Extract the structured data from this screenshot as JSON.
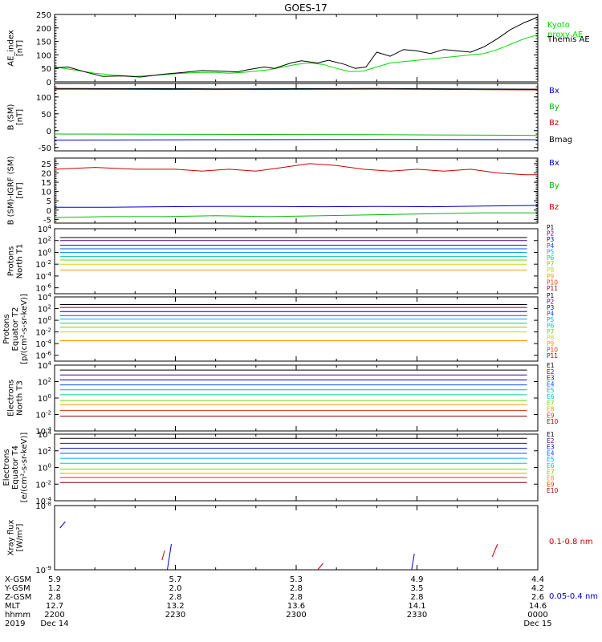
{
  "title": "GOES-17",
  "chart_data": [
    {
      "type": "line",
      "ylabel": [
        "AE_index",
        "[nT]"
      ],
      "ylim": [
        0,
        250
      ],
      "yticks": [
        "0",
        "50",
        "100",
        "150",
        "200",
        "250"
      ],
      "series": [
        {
          "name": "Kyoto proxy AE",
          "color": "#00dd00",
          "x": [
            0,
            5,
            15,
            22,
            30,
            38,
            45,
            50,
            55,
            60,
            65,
            70,
            75,
            80,
            85,
            90,
            95,
            100,
            105,
            110,
            115,
            120,
            125,
            130,
            135,
            140,
            145,
            150,
            155,
            160,
            165,
            170,
            175,
            180
          ],
          "y": [
            55,
            48,
            32,
            25,
            20,
            25,
            30,
            33,
            35,
            35,
            32,
            35,
            40,
            45,
            55,
            65,
            70,
            65,
            50,
            38,
            40,
            55,
            70,
            75,
            80,
            85,
            90,
            95,
            100,
            105,
            120,
            140,
            160,
            175
          ]
        },
        {
          "name": "Themis AE",
          "color": "#000000",
          "x": [
            0,
            5,
            12,
            18,
            25,
            32,
            40,
            48,
            55,
            62,
            68,
            72,
            78,
            82,
            88,
            92,
            98,
            102,
            108,
            112,
            116,
            120,
            125,
            130,
            135,
            140,
            145,
            150,
            155,
            160,
            165,
            170,
            175,
            180
          ],
          "y": [
            52,
            55,
            35,
            20,
            22,
            18,
            28,
            35,
            42,
            40,
            37,
            45,
            55,
            50,
            70,
            78,
            70,
            80,
            65,
            50,
            55,
            110,
            95,
            120,
            115,
            105,
            120,
            115,
            110,
            130,
            160,
            195,
            220,
            240
          ]
        }
      ]
    },
    {
      "type": "line",
      "ylabel": [
        "B (SM)",
        "[nT]"
      ],
      "ylim": [
        -60,
        140
      ],
      "yticks": [
        "-50",
        "0",
        "50",
        "100"
      ],
      "series": [
        {
          "name": "Bx",
          "color": "#0000cc",
          "x": [
            0,
            60,
            120,
            180
          ],
          "y": [
            -28,
            -27,
            -26,
            -27
          ]
        },
        {
          "name": "By",
          "color": "#00bb00",
          "x": [
            0,
            60,
            120,
            180
          ],
          "y": [
            -10,
            -11,
            -12,
            -14
          ]
        },
        {
          "name": "Bz",
          "color": "#cc0000",
          "x": [
            0,
            60,
            120,
            180
          ],
          "y": [
            123,
            122,
            123,
            121
          ]
        },
        {
          "name": "Bmag",
          "color": "#000000",
          "x": [
            0,
            60,
            120,
            180
          ],
          "y": [
            125,
            124,
            125,
            123
          ]
        }
      ]
    },
    {
      "type": "line",
      "ylabel": [
        "B (SM)-IGRF (SM)",
        "[nT]"
      ],
      "ylim": [
        -7,
        28
      ],
      "yticks": [
        "-5",
        "0",
        "5",
        "10",
        "15",
        "20",
        "25"
      ],
      "series": [
        {
          "name": "Bx",
          "color": "#0000cc",
          "x": [
            0,
            20,
            40,
            60,
            80,
            100,
            120,
            140,
            160,
            180
          ],
          "y": [
            1.5,
            1.5,
            1.8,
            2.0,
            2.0,
            1.8,
            2.0,
            1.8,
            2.2,
            2.5
          ]
        },
        {
          "name": "By",
          "color": "#00bb00",
          "x": [
            0,
            20,
            40,
            60,
            80,
            100,
            120,
            140,
            160,
            180
          ],
          "y": [
            -4,
            -3.5,
            -3.5,
            -3,
            -3.5,
            -3,
            -2.5,
            -2,
            -1.5,
            -1.5
          ]
        },
        {
          "name": "Bz",
          "color": "#cc0000",
          "x": [
            0,
            15,
            30,
            45,
            55,
            65,
            75,
            85,
            95,
            105,
            115,
            125,
            135,
            145,
            155,
            165,
            175,
            180
          ],
          "y": [
            22,
            23,
            22,
            22,
            21,
            22,
            21,
            23,
            25,
            24,
            22,
            21,
            22,
            21,
            22,
            20,
            19,
            19
          ]
        }
      ]
    },
    {
      "type": "line",
      "ylabel": [
        "Protons",
        "North T1"
      ],
      "log": true,
      "ylim_exp": [
        -7,
        4
      ],
      "yticks": [
        "10-6",
        "10-4",
        "10-2",
        "100",
        "102",
        "104"
      ],
      "series": [
        {
          "name": "P1",
          "color": "#000000",
          "level": 2.5
        },
        {
          "name": "P2",
          "color": "#4b0082",
          "level": 2.0
        },
        {
          "name": "P3",
          "color": "#0000cc",
          "level": 1.2
        },
        {
          "name": "P4",
          "color": "#0055ff",
          "level": 0.6
        },
        {
          "name": "P5",
          "color": "#00aaee",
          "level": 0.0
        },
        {
          "name": "P6",
          "color": "#00ccaa",
          "level": -0.7
        },
        {
          "name": "P7",
          "color": "#66dd00",
          "level": -1.3
        },
        {
          "name": "P8",
          "color": "#bbdd00",
          "level": -2.0
        },
        {
          "name": "P9",
          "color": "#ff9900",
          "level": -3.0
        },
        {
          "name": "P10",
          "color": "#dd3300",
          "level": -8
        },
        {
          "name": "P11",
          "color": "#990000",
          "level": -8
        }
      ]
    },
    {
      "type": "line",
      "ylabel": [
        "Protons",
        "Equator T2",
        "[p/(cm²-s-sr-keV)]"
      ],
      "log": true,
      "ylim_exp": [
        -7,
        4
      ],
      "yticks": [
        "10-6",
        "10-4",
        "10-2",
        "100",
        "102",
        "104"
      ],
      "series": [
        {
          "name": "P1",
          "color": "#000000",
          "level": 2.7
        },
        {
          "name": "P2",
          "color": "#4b0082",
          "level": 2.2
        },
        {
          "name": "P3",
          "color": "#0000cc",
          "level": 1.5
        },
        {
          "name": "P4",
          "color": "#0055ff",
          "level": 0.8
        },
        {
          "name": "P5",
          "color": "#00aaee",
          "level": 0.2
        },
        {
          "name": "P6",
          "color": "#00ccaa",
          "level": -0.5
        },
        {
          "name": "P7",
          "color": "#66dd00",
          "level": -1.2
        },
        {
          "name": "P8",
          "color": "#bbdd00",
          "level": -2.0
        },
        {
          "name": "P9",
          "color": "#ff9900",
          "level": -3.5
        },
        {
          "name": "P10",
          "color": "#dd3300",
          "level": -8
        },
        {
          "name": "P11",
          "color": "#990000",
          "level": -8
        }
      ]
    },
    {
      "type": "line",
      "ylabel": [
        "Electrons",
        "North T3"
      ],
      "log": true,
      "ylim_exp": [
        -4,
        4
      ],
      "yticks": [
        "10-4",
        "10-2",
        "100",
        "102",
        "104"
      ],
      "series": [
        {
          "name": "E1",
          "color": "#000000",
          "level": 3.4
        },
        {
          "name": "E2",
          "color": "#4b0082",
          "level": 2.8
        },
        {
          "name": "E3",
          "color": "#0000cc",
          "level": 2.2
        },
        {
          "name": "E4",
          "color": "#0055ff",
          "level": 1.6
        },
        {
          "name": "E5",
          "color": "#00aaee",
          "level": 1.0
        },
        {
          "name": "E6",
          "color": "#00ccaa",
          "level": 0.4
        },
        {
          "name": "E7",
          "color": "#66dd00",
          "level": -0.3
        },
        {
          "name": "E8",
          "color": "#ff9900",
          "level": -0.8
        },
        {
          "name": "E9",
          "color": "#dd3300",
          "level": -1.5
        },
        {
          "name": "E10",
          "color": "#990000",
          "level": -2.2
        }
      ]
    },
    {
      "type": "line",
      "ylabel": [
        "Electrons",
        "Equator T4",
        "[e/(cm²-s-sr-keV)]"
      ],
      "log": true,
      "ylim_exp": [
        -4,
        4
      ],
      "yticks": [
        "10-4",
        "10-2",
        "100",
        "102",
        "104"
      ],
      "series": [
        {
          "name": "E1",
          "color": "#000000",
          "level": 3.5
        },
        {
          "name": "E2",
          "color": "#4b0082",
          "level": 2.9
        },
        {
          "name": "E3",
          "color": "#0000cc",
          "level": 2.3
        },
        {
          "name": "E4",
          "color": "#0055ff",
          "level": 1.7
        },
        {
          "name": "E5",
          "color": "#00aaee",
          "level": 1.1
        },
        {
          "name": "E6",
          "color": "#00ccaa",
          "level": 0.5
        },
        {
          "name": "E7",
          "color": "#66dd00",
          "level": -0.2
        },
        {
          "name": "E8",
          "color": "#ff9900",
          "level": -0.7
        },
        {
          "name": "E9",
          "color": "#dd3300",
          "level": -1.2
        },
        {
          "name": "E10",
          "color": "#990000",
          "level": -1.8
        }
      ]
    },
    {
      "type": "line",
      "ylabel": [
        "Xray flux",
        "[W/m²]"
      ],
      "log": true,
      "ylim_exp": [
        -9,
        -8
      ],
      "yticks": [
        "10-9",
        "10-8"
      ],
      "series": [
        {
          "name": "0.1-0.8 nm",
          "color": "#cc0000",
          "segments": [
            [
              [
                40,
                -8.85
              ],
              [
                41,
                -8.7
              ]
            ],
            [
              [
                98,
                -9.0
              ],
              [
                100,
                -8.9
              ]
            ],
            [
              [
                163,
                -8.8
              ],
              [
                165,
                -8.6
              ]
            ]
          ]
        },
        {
          "name": "0.05-0.4 nm",
          "color": "#0000cc",
          "segments": [
            [
              [
                2,
                -8.35
              ],
              [
                4,
                -8.25
              ]
            ],
            [
              [
                42,
                -9.0
              ],
              [
                43.5,
                -8.6
              ]
            ],
            [
              [
                133,
                -9.0
              ],
              [
                134,
                -8.75
              ]
            ]
          ]
        }
      ]
    }
  ],
  "footer": {
    "row_labels": [
      "X-GSM",
      "Y-GSM",
      "Z-GSM",
      "MLT",
      "hhmm",
      "2019"
    ],
    "columns": [
      {
        "x": 0,
        "values": [
          "5.9",
          "1.2",
          "2.8",
          "12.7",
          "2200",
          "Dec 14"
        ]
      },
      {
        "x": 45,
        "values": [
          "5.7",
          "2.0",
          "2.8",
          "13.2",
          "2230",
          ""
        ]
      },
      {
        "x": 90,
        "values": [
          "5.3",
          "2.8",
          "2.8",
          "13.6",
          "2300",
          ""
        ]
      },
      {
        "x": 135,
        "values": [
          "4.9",
          "3.5",
          "2.8",
          "14.1",
          "2330",
          ""
        ]
      },
      {
        "x": 180,
        "values": [
          "4.4",
          "4.2",
          "2.6",
          "14.6",
          "0000",
          "Dec 15"
        ]
      }
    ]
  }
}
